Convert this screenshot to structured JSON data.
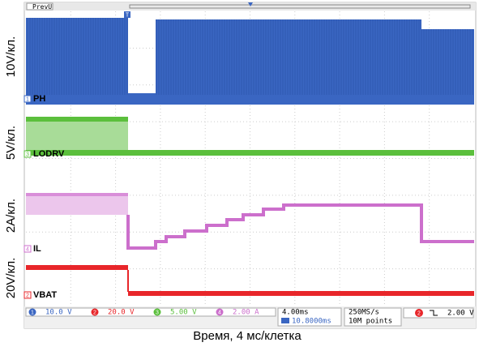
{
  "top_bar": {
    "mode": "PrevU",
    "trigger_marker": "T"
  },
  "axis_labels": [
    "10V/кл.",
    "5V/кл.",
    "2A/кл.",
    "20V/кл."
  ],
  "channels": [
    {
      "marker": "1",
      "label": "PH"
    },
    {
      "marker": "3",
      "label": "LODRV"
    },
    {
      "marker": "4",
      "label": "IL"
    },
    {
      "marker": "2",
      "label": "VBAT"
    }
  ],
  "status": {
    "channels": [
      {
        "marker": "1",
        "scale": "10.0 V"
      },
      {
        "marker": "2",
        "scale": "20.0 V"
      },
      {
        "marker": "3",
        "scale": "5.00 V"
      },
      {
        "marker": "4",
        "scale": "2.00 A"
      }
    ],
    "timebase": "4.00ms",
    "position": "10.8000ms",
    "sample_rate": "250MS/s",
    "record_length": "10M points",
    "trigger": {
      "channel": "2",
      "level": "2.00 V"
    }
  },
  "caption": "Время, 4 мс/клетка"
}
